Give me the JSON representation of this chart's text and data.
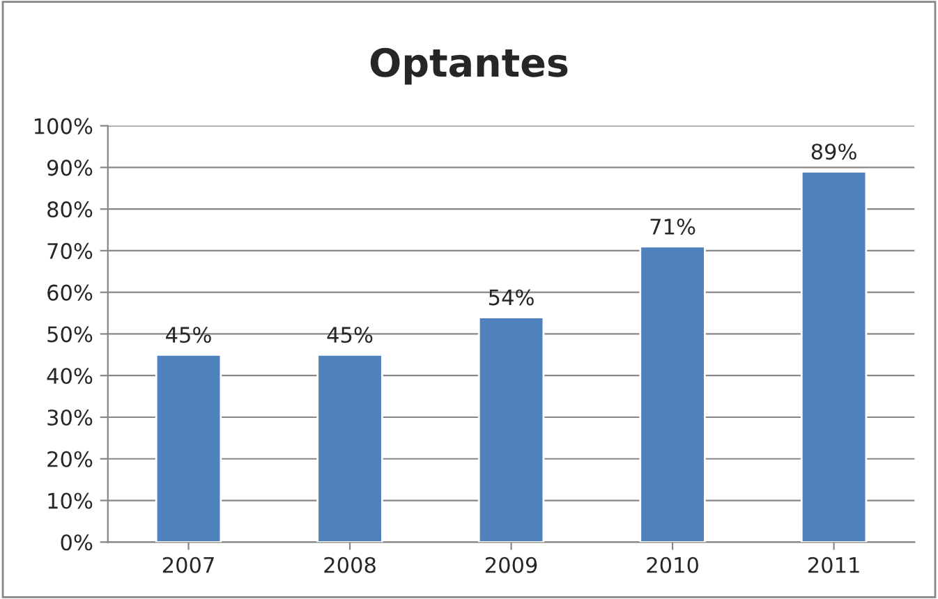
{
  "chart_data": {
    "type": "bar",
    "title": "Optantes",
    "categories": [
      "2007",
      "2008",
      "2009",
      "2010",
      "2011"
    ],
    "values": [
      45,
      45,
      54,
      71,
      89
    ],
    "color": "#4f81bd",
    "value_labels": [
      "45%",
      "45%",
      "54%",
      "71%",
      "89%"
    ],
    "ylim": [
      0,
      100
    ],
    "yticks": [
      {
        "value": 0,
        "label": "0%"
      },
      {
        "value": 10,
        "label": "10%"
      },
      {
        "value": 20,
        "label": "20%"
      },
      {
        "value": 30,
        "label": "30%"
      },
      {
        "value": 40,
        "label": "40%"
      },
      {
        "value": 50,
        "label": "50%"
      },
      {
        "value": 60,
        "label": "60%"
      },
      {
        "value": 70,
        "label": "70%"
      },
      {
        "value": 80,
        "label": "80%"
      },
      {
        "value": 90,
        "label": "90%"
      },
      {
        "value": 100,
        "label": "100%"
      }
    ],
    "grid": "y",
    "legend": false
  }
}
